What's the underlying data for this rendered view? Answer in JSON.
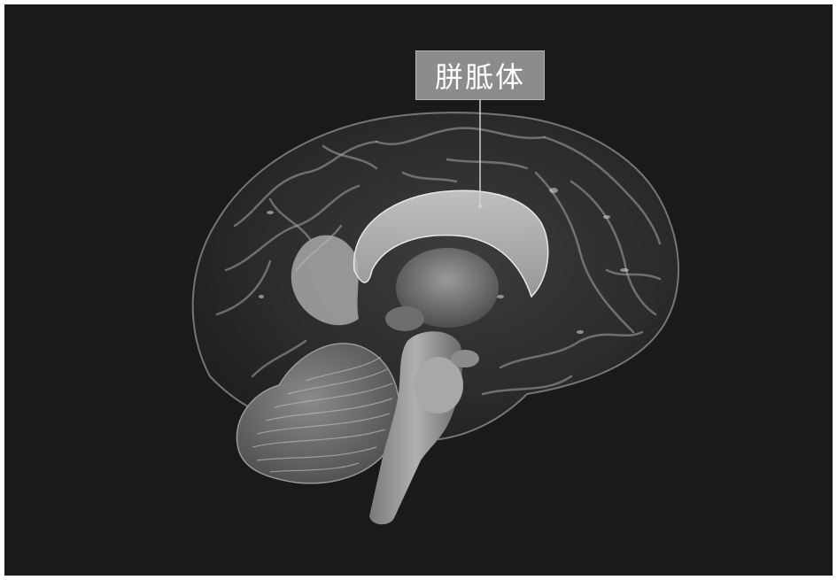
{
  "structure_label": {
    "text": "胼胝体"
  },
  "colors": {
    "background": "#1a1a1a",
    "label_box": "#8c8c8c",
    "label_text": "#ffffff",
    "pointer_line": "#d0d0d0"
  }
}
